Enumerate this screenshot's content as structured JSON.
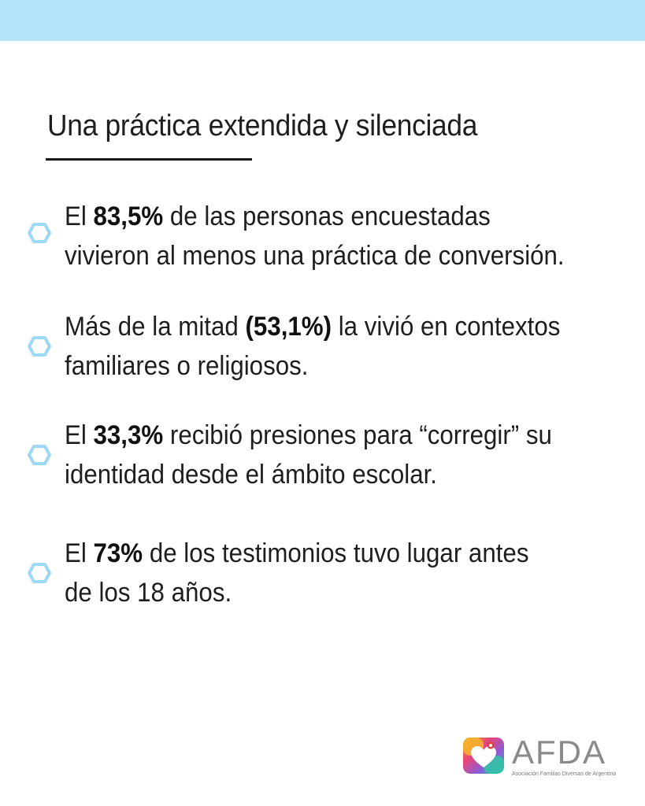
{
  "title": "Una práctica extendida y silenciada",
  "points": [
    {
      "lines": [
        [
          {
            "text": "El "
          },
          {
            "text": "83,5%",
            "bold": true
          },
          {
            "text": " de las personas encuestadas"
          }
        ],
        [
          {
            "text": "vivieron al menos una práctica de conversión."
          }
        ]
      ]
    },
    {
      "lines": [
        [
          {
            "text": "Más de la mitad "
          },
          {
            "text": "(53,1%)",
            "bold": true
          },
          {
            "text": " la vivió en contextos"
          }
        ],
        [
          {
            "text": "familiares o religiosos."
          }
        ]
      ]
    },
    {
      "lines": [
        [
          {
            "text": "El "
          },
          {
            "text": "33,3%",
            "bold": true
          },
          {
            "text": " recibió presiones para “corregir” su"
          }
        ],
        [
          {
            "text": "identidad desde el ámbito escolar."
          }
        ]
      ]
    },
    {
      "lines": [
        [
          {
            "text": "El "
          },
          {
            "text": "73%",
            "bold": true
          },
          {
            "text": " de los testimonios tuvo lugar antes"
          }
        ],
        [
          {
            "text": "de los 18 años."
          }
        ]
      ]
    }
  ],
  "logo": {
    "wordmark": "AFDA",
    "subtitle": "Asociación Familias Diversas de Argentina"
  },
  "colors": {
    "top_bar": "#b5e3f8",
    "bullet_hexagon": "#9fd8f5",
    "text": "#1e1e1e"
  },
  "icons": {
    "bullet": "hexagon-outline-icon",
    "logo": "heart-logo-icon"
  }
}
